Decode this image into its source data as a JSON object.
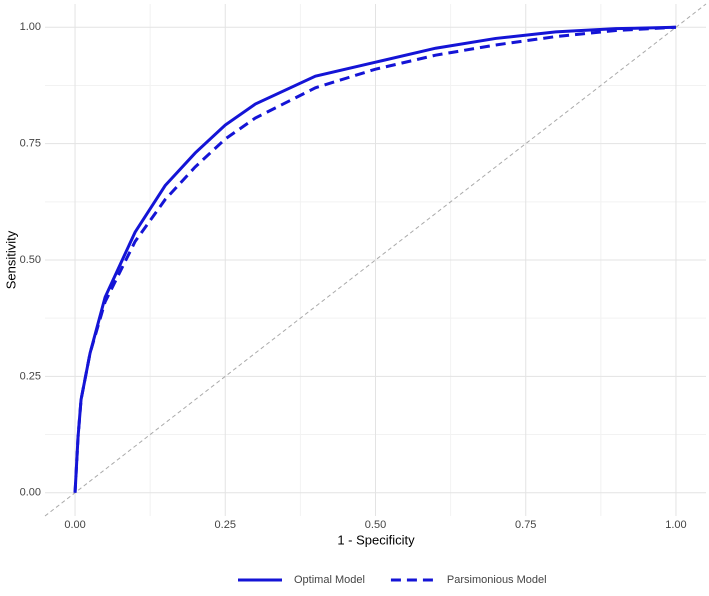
{
  "chart_data": {
    "type": "line",
    "x_label": "1 - Specificity",
    "y_label": "Sensitivity",
    "x": [
      0,
      0.005,
      0.01,
      0.025,
      0.05,
      0.1,
      0.15,
      0.2,
      0.25,
      0.3,
      0.4,
      0.5,
      0.6,
      0.7,
      0.8,
      0.9,
      1
    ],
    "series": [
      {
        "name": "Optimal Model",
        "color": "#1414d6",
        "dash": "solid",
        "values": [
          0,
          0.12,
          0.2,
          0.3,
          0.42,
          0.56,
          0.66,
          0.73,
          0.79,
          0.835,
          0.895,
          0.925,
          0.955,
          0.976,
          0.99,
          0.997,
          1
        ]
      },
      {
        "name": "Parsimonious Model",
        "color": "#1414d6",
        "dash": "dashed",
        "values": [
          0,
          0.12,
          0.2,
          0.3,
          0.41,
          0.54,
          0.63,
          0.7,
          0.76,
          0.805,
          0.87,
          0.91,
          0.94,
          0.962,
          0.98,
          0.993,
          1
        ]
      }
    ],
    "xlim": [
      -0.05,
      1.05
    ],
    "ylim": [
      -0.05,
      1.05
    ],
    "xticks": [
      {
        "value": 0,
        "label": "0.00"
      },
      {
        "value": 0.25,
        "label": "0.25"
      },
      {
        "value": 0.5,
        "label": "0.50"
      },
      {
        "value": 0.75,
        "label": "0.75"
      },
      {
        "value": 1,
        "label": "1.00"
      }
    ],
    "yticks": [
      {
        "value": 0,
        "label": "0.00"
      },
      {
        "value": 0.25,
        "label": "0.25"
      },
      {
        "value": 0.5,
        "label": "0.50"
      },
      {
        "value": 0.75,
        "label": "0.75"
      },
      {
        "value": 1,
        "label": "1.00"
      }
    ],
    "grid": true,
    "minor_grid": true,
    "reference_line": {
      "slope": 1,
      "intercept": 0,
      "color": "#aaaaaa"
    },
    "legend": "bottom"
  }
}
